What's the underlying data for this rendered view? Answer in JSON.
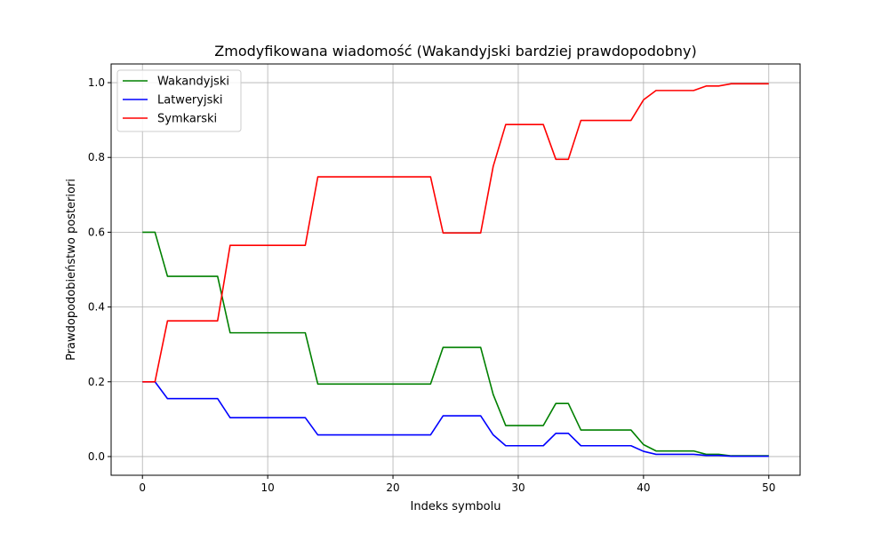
{
  "chart_data": {
    "type": "line",
    "title": "Zmodyfikowana wiadomość (Wakandyjski bardziej prawdopodobny)",
    "xlabel": "Indeks symbolu",
    "ylabel": "Prawdopodobieństwo posteriori",
    "xlim": [
      -2.5,
      52.5
    ],
    "ylim": [
      -0.05,
      1.05
    ],
    "xticks": [
      0,
      10,
      20,
      30,
      40,
      50
    ],
    "yticks": [
      0.0,
      0.2,
      0.4,
      0.6,
      0.8,
      1.0
    ],
    "xtick_labels": [
      "0",
      "10",
      "20",
      "30",
      "40",
      "50"
    ],
    "ytick_labels": [
      "0.0",
      "0.2",
      "0.4",
      "0.6",
      "0.8",
      "1.0"
    ],
    "grid": true,
    "legend_position": "top-left",
    "x": [
      0,
      1,
      2,
      3,
      4,
      5,
      6,
      7,
      8,
      9,
      10,
      11,
      12,
      13,
      14,
      15,
      16,
      17,
      18,
      19,
      20,
      21,
      22,
      23,
      24,
      25,
      26,
      27,
      28,
      29,
      30,
      31,
      32,
      33,
      34,
      35,
      36,
      37,
      38,
      39,
      40,
      41,
      42,
      43,
      44,
      45,
      46,
      47,
      48,
      49,
      50
    ],
    "series": [
      {
        "name": "Wakandyjski",
        "color": "#008000",
        "values": [
          0.6,
          0.6,
          0.482,
          0.482,
          0.482,
          0.482,
          0.482,
          0.331,
          0.331,
          0.331,
          0.331,
          0.331,
          0.331,
          0.331,
          0.194,
          0.194,
          0.194,
          0.194,
          0.194,
          0.194,
          0.194,
          0.194,
          0.194,
          0.194,
          0.292,
          0.292,
          0.292,
          0.292,
          0.166,
          0.083,
          0.083,
          0.083,
          0.083,
          0.142,
          0.142,
          0.071,
          0.071,
          0.071,
          0.071,
          0.071,
          0.032,
          0.015,
          0.015,
          0.015,
          0.015,
          0.006,
          0.006,
          0.002,
          0.002,
          0.002,
          0.002
        ]
      },
      {
        "name": "Latweryjski",
        "color": "#0000ff",
        "values": [
          0.2,
          0.2,
          0.155,
          0.155,
          0.155,
          0.155,
          0.155,
          0.104,
          0.104,
          0.104,
          0.104,
          0.104,
          0.104,
          0.104,
          0.058,
          0.058,
          0.058,
          0.058,
          0.058,
          0.058,
          0.058,
          0.058,
          0.058,
          0.058,
          0.109,
          0.109,
          0.109,
          0.109,
          0.058,
          0.029,
          0.029,
          0.029,
          0.029,
          0.062,
          0.062,
          0.029,
          0.029,
          0.029,
          0.029,
          0.029,
          0.014,
          0.006,
          0.006,
          0.006,
          0.006,
          0.003,
          0.003,
          0.001,
          0.001,
          0.001,
          0.001
        ]
      },
      {
        "name": "Symkarski",
        "color": "#ff0000",
        "values": [
          0.2,
          0.2,
          0.363,
          0.363,
          0.363,
          0.363,
          0.363,
          0.565,
          0.565,
          0.565,
          0.565,
          0.565,
          0.565,
          0.565,
          0.748,
          0.748,
          0.748,
          0.748,
          0.748,
          0.748,
          0.748,
          0.748,
          0.748,
          0.748,
          0.598,
          0.598,
          0.598,
          0.598,
          0.776,
          0.888,
          0.888,
          0.888,
          0.888,
          0.795,
          0.795,
          0.899,
          0.899,
          0.899,
          0.899,
          0.899,
          0.954,
          0.979,
          0.979,
          0.979,
          0.979,
          0.991,
          0.991,
          0.997,
          0.997,
          0.997,
          0.997
        ]
      }
    ]
  }
}
